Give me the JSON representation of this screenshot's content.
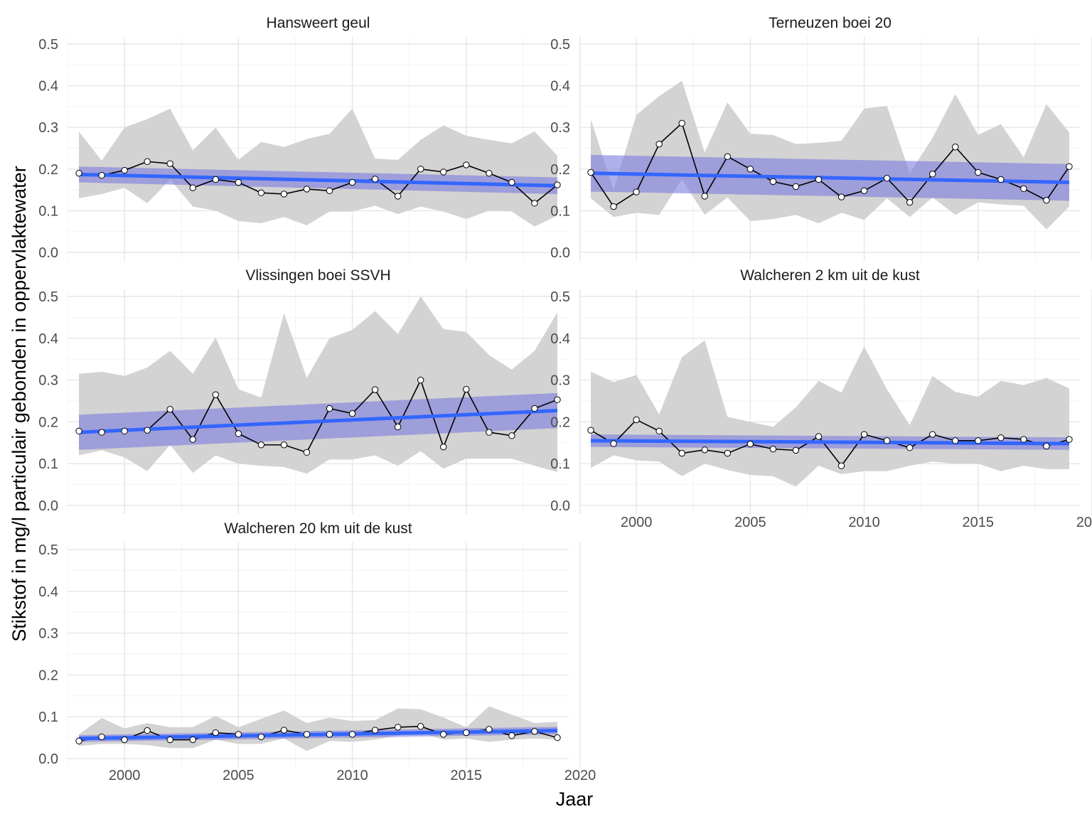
{
  "chart_data": {
    "type": "line",
    "xlabel": "Jaar",
    "ylabel": "Stikstof in mg/l particulair gebonden in oppervlaktewater",
    "xlim": [
      1997.5,
      2019.5
    ],
    "ylim": [
      0,
      0.5
    ],
    "x_ticks": [
      2000,
      2005,
      2010,
      2015,
      2020
    ],
    "x_tick_labels": [
      "2000",
      "2005",
      "2010",
      "2015",
      "2020"
    ],
    "y_ticks": [
      0,
      0.1,
      0.2,
      0.3,
      0.4,
      0.5
    ],
    "y_tick_labels": [
      "0.0",
      "0.1",
      "0.2",
      "0.3",
      "0.4",
      "0.5"
    ],
    "grid": true,
    "colors": {
      "trend_line": "#3366ff",
      "trend_band": "#7b7be0",
      "range_band": "#d3d3d3",
      "series_line": "#000000",
      "point_fill": "#ffffff"
    },
    "years": [
      1998,
      1999,
      2000,
      2001,
      2002,
      2003,
      2004,
      2005,
      2006,
      2007,
      2008,
      2009,
      2010,
      2011,
      2012,
      2013,
      2014,
      2015,
      2016,
      2017,
      2018,
      2019
    ],
    "panels": [
      {
        "title": "Hansweert geul",
        "values": [
          0.19,
          0.185,
          0.197,
          0.218,
          0.213,
          0.155,
          0.175,
          0.168,
          0.143,
          0.14,
          0.152,
          0.148,
          0.168,
          0.176,
          0.135,
          0.2,
          0.193,
          0.21,
          0.19,
          0.168,
          0.118,
          0.162
        ],
        "max": [
          0.29,
          0.22,
          0.3,
          0.32,
          0.345,
          0.245,
          0.3,
          0.222,
          0.265,
          0.253,
          0.272,
          0.285,
          0.345,
          0.225,
          0.222,
          0.27,
          0.305,
          0.28,
          0.27,
          0.262,
          0.29,
          0.232
        ],
        "min": [
          0.13,
          0.14,
          0.155,
          0.118,
          0.175,
          0.11,
          0.1,
          0.075,
          0.07,
          0.085,
          0.065,
          0.098,
          0.098,
          0.112,
          0.092,
          0.11,
          0.098,
          0.08,
          0.1,
          0.098,
          0.062,
          0.088
        ],
        "trend": {
          "start": 0.187,
          "end": 0.16
        },
        "trend_ci": {
          "start_low": 0.168,
          "start_high": 0.206,
          "end_low": 0.14,
          "end_high": 0.18
        }
      },
      {
        "title": "Terneuzen boei 20",
        "values": [
          0.192,
          0.11,
          0.145,
          0.26,
          0.31,
          0.135,
          0.23,
          0.2,
          0.17,
          0.158,
          0.175,
          0.133,
          0.148,
          0.178,
          0.12,
          0.188,
          0.253,
          0.192,
          0.175,
          0.153,
          0.125,
          0.206
        ],
        "max": [
          0.32,
          0.15,
          0.33,
          0.375,
          0.412,
          0.24,
          0.36,
          0.285,
          0.282,
          0.26,
          0.263,
          0.268,
          0.345,
          0.352,
          0.19,
          0.275,
          0.38,
          0.282,
          0.308,
          0.228,
          0.356,
          0.288
        ],
        "min": [
          0.13,
          0.085,
          0.095,
          0.09,
          0.175,
          0.09,
          0.132,
          0.075,
          0.08,
          0.09,
          0.07,
          0.095,
          0.078,
          0.13,
          0.085,
          0.132,
          0.09,
          0.12,
          0.115,
          0.112,
          0.055,
          0.11
        ],
        "trend": {
          "start": 0.19,
          "end": 0.168
        },
        "trend_ci": {
          "start_low": 0.146,
          "start_high": 0.234,
          "end_low": 0.124,
          "end_high": 0.212
        }
      },
      {
        "title": "Vlissingen boei SSVH",
        "values": [
          0.178,
          0.175,
          0.178,
          0.18,
          0.23,
          0.158,
          0.265,
          0.172,
          0.145,
          0.145,
          0.127,
          0.232,
          0.22,
          0.277,
          0.188,
          0.3,
          0.14,
          0.278,
          0.175,
          0.167,
          0.232,
          0.253
        ],
        "max": [
          0.315,
          0.32,
          0.31,
          0.33,
          0.37,
          0.315,
          0.402,
          0.278,
          0.258,
          0.46,
          0.305,
          0.4,
          0.42,
          0.465,
          0.41,
          0.5,
          0.422,
          0.415,
          0.36,
          0.325,
          0.37,
          0.462
        ],
        "min": [
          0.12,
          0.132,
          0.115,
          0.082,
          0.145,
          0.078,
          0.12,
          0.1,
          0.095,
          0.092,
          0.076,
          0.11,
          0.11,
          0.12,
          0.095,
          0.13,
          0.088,
          0.112,
          0.112,
          0.112,
          0.095,
          0.08
        ],
        "trend": {
          "start": 0.175,
          "end": 0.227
        },
        "trend_ci": {
          "start_low": 0.133,
          "start_high": 0.217,
          "end_low": 0.185,
          "end_high": 0.269
        }
      },
      {
        "title": "Walcheren 2 km uit de kust",
        "values": [
          0.18,
          0.148,
          0.205,
          0.178,
          0.125,
          0.133,
          0.125,
          0.147,
          0.135,
          0.132,
          0.165,
          0.095,
          0.17,
          0.155,
          0.138,
          0.17,
          0.155,
          0.155,
          0.162,
          0.158,
          0.142,
          0.158
        ],
        "max": [
          0.32,
          0.295,
          0.312,
          0.218,
          0.355,
          0.395,
          0.212,
          0.2,
          0.188,
          0.235,
          0.298,
          0.27,
          0.38,
          0.278,
          0.192,
          0.31,
          0.272,
          0.26,
          0.298,
          0.288,
          0.305,
          0.28
        ],
        "min": [
          0.09,
          0.12,
          0.108,
          0.105,
          0.07,
          0.1,
          0.085,
          0.073,
          0.07,
          0.045,
          0.095,
          0.075,
          0.082,
          0.082,
          0.095,
          0.105,
          0.1,
          0.1,
          0.082,
          0.095,
          0.087,
          0.087
        ],
        "trend": {
          "start": 0.155,
          "end": 0.148
        },
        "trend_ci": {
          "start_low": 0.14,
          "start_high": 0.17,
          "end_low": 0.133,
          "end_high": 0.163
        }
      },
      {
        "title": "Walcheren 20 km uit de kust",
        "values": [
          0.042,
          0.052,
          0.045,
          0.067,
          0.045,
          0.045,
          0.062,
          0.058,
          0.052,
          0.068,
          0.058,
          0.058,
          0.058,
          0.068,
          0.075,
          0.077,
          0.058,
          0.062,
          0.07,
          0.055,
          0.065,
          0.05
        ],
        "max": [
          0.058,
          0.097,
          0.072,
          0.085,
          0.075,
          0.075,
          0.102,
          0.075,
          0.095,
          0.115,
          0.085,
          0.098,
          0.09,
          0.092,
          0.12,
          0.118,
          0.098,
          0.075,
          0.125,
          0.105,
          0.085,
          0.088
        ],
        "min": [
          0.03,
          0.035,
          0.035,
          0.032,
          0.025,
          0.025,
          0.045,
          0.035,
          0.035,
          0.048,
          0.018,
          0.042,
          0.04,
          0.045,
          0.055,
          0.062,
          0.045,
          0.048,
          0.04,
          0.045,
          0.048,
          0.045
        ],
        "trend": {
          "start": 0.048,
          "end": 0.067
        },
        "trend_ci": {
          "start_low": 0.04,
          "start_high": 0.056,
          "end_low": 0.058,
          "end_high": 0.076
        }
      }
    ]
  }
}
